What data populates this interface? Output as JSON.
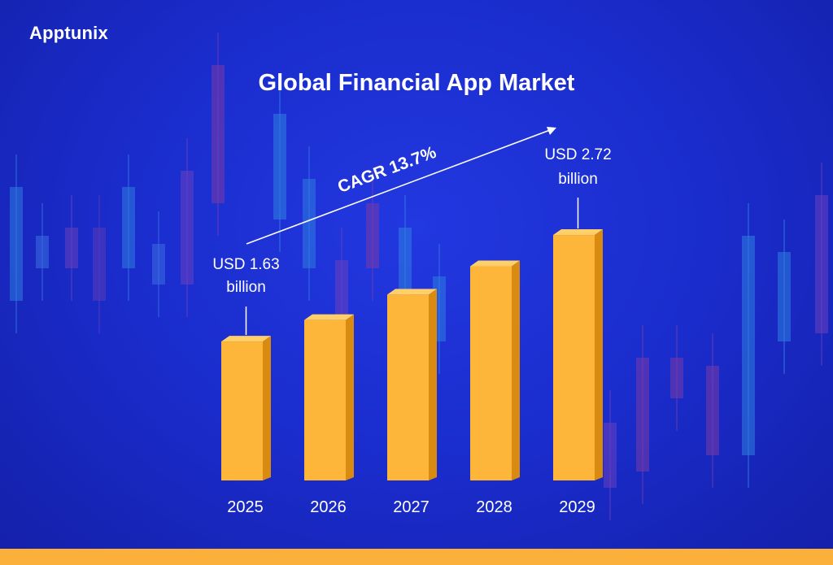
{
  "brand": {
    "logo_text": "Apptunix"
  },
  "chart_data": {
    "type": "bar",
    "title": "Global Financial App Market",
    "categories": [
      "2025",
      "2026",
      "2027",
      "2028",
      "2029"
    ],
    "values": [
      1.63,
      1.85,
      2.11,
      2.4,
      2.72
    ],
    "unit": "USD billion",
    "annotations": [
      {
        "category": "2025",
        "line1": "USD 1.63",
        "line2": "billion"
      },
      {
        "category": "2029",
        "line1": "USD 2.72",
        "line2": "billion"
      }
    ],
    "trend_label": "CAGR 13.7%",
    "xlabel": "",
    "ylabel": "",
    "grid": false,
    "legend": "none",
    "colors": {
      "bar_front": "#fdb53a",
      "bar_side": "#d98a10",
      "bar_top": "#ffcf6a",
      "background": "#1a2ccc",
      "text": "#ffffff"
    }
  }
}
